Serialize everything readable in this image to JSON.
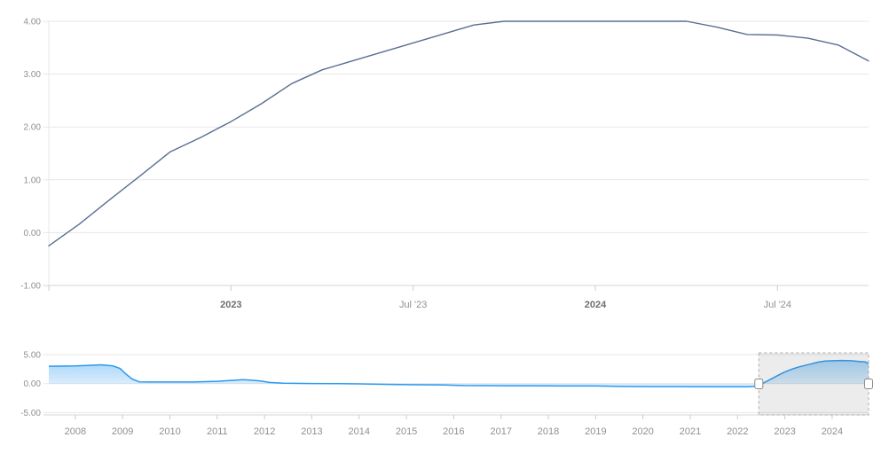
{
  "colors": {
    "background": "#ffffff",
    "grid": "#e7e7e7",
    "axis_line": "#d6d6d6",
    "tick": "#cccccc",
    "label": "#909090",
    "label_bold": "#6e6e6e",
    "main_line": "#5a6e93",
    "nav_line": "#2b99ef",
    "nav_fill_top": "rgba(43,153,239,0.50)",
    "nav_fill_bottom": "rgba(43,153,239,0.03)",
    "mask_fill": "rgba(110,110,110,0.13)",
    "mask_border": "#ababab",
    "handle_fill": "#ffffff",
    "handle_border": "#8c8c8c"
  },
  "chart_data": [
    {
      "id": "main",
      "type": "line",
      "title": "",
      "xlabel": "",
      "ylabel": "",
      "legend": false,
      "grid": true,
      "ylim": [
        -1,
        4
      ],
      "x": [
        "Jul '22",
        "Aug '22",
        "Sep '22",
        "Oct '22",
        "Nov '22",
        "Dec '22",
        "Jan '23",
        "Feb '23",
        "Mar '23",
        "Apr '23",
        "May '23",
        "Jun '23",
        "Jul '23",
        "Aug '23",
        "Sep '23",
        "Oct '23",
        "Nov '23",
        "Dec '23",
        "Jan '24",
        "Feb '24",
        "Mar '24",
        "Apr '24",
        "May '24",
        "Jun '24",
        "Jul '24",
        "Aug '24",
        "Sep '24",
        "Oct '24"
      ],
      "values": [
        -0.25,
        0.16,
        0.62,
        1.07,
        1.53,
        1.8,
        2.1,
        2.44,
        2.82,
        3.08,
        3.25,
        3.42,
        3.59,
        3.76,
        3.93,
        4.0,
        4.0,
        4.0,
        4.0,
        4.0,
        4.0,
        4.0,
        3.89,
        3.75,
        3.74,
        3.68,
        3.55,
        3.25
      ],
      "y_ticks": [
        {
          "v": 4,
          "label": "4.00"
        },
        {
          "v": 3,
          "label": "3.00"
        },
        {
          "v": 2,
          "label": "2.00"
        },
        {
          "v": 1,
          "label": "1.00"
        },
        {
          "v": 0,
          "label": "0.00"
        },
        {
          "v": -1,
          "label": "-1.00"
        }
      ],
      "x_ticks": [
        {
          "i": 0,
          "label": "",
          "bold": false
        },
        {
          "i": 6,
          "label": "2023",
          "bold": true
        },
        {
          "i": 12,
          "label": "Jul '23",
          "bold": false
        },
        {
          "i": 18,
          "label": "2024",
          "bold": true
        },
        {
          "i": 24,
          "label": "Jul '24",
          "bold": false
        }
      ]
    },
    {
      "id": "navigator",
      "type": "area",
      "title": "",
      "legend": false,
      "grid": true,
      "x_domain": [
        2007.44,
        2024.77
      ],
      "ylim": [
        -5,
        5
      ],
      "points": [
        [
          2007.44,
          3.0
        ],
        [
          2008.0,
          3.05
        ],
        [
          2008.3,
          3.15
        ],
        [
          2008.55,
          3.25
        ],
        [
          2008.8,
          3.05
        ],
        [
          2008.95,
          2.6
        ],
        [
          2009.05,
          1.8
        ],
        [
          2009.2,
          0.8
        ],
        [
          2009.35,
          0.3
        ],
        [
          2009.6,
          0.28
        ],
        [
          2010.0,
          0.27
        ],
        [
          2010.5,
          0.28
        ],
        [
          2011.0,
          0.4
        ],
        [
          2011.3,
          0.55
        ],
        [
          2011.55,
          0.68
        ],
        [
          2011.8,
          0.55
        ],
        [
          2011.95,
          0.42
        ],
        [
          2012.1,
          0.2
        ],
        [
          2012.4,
          0.07
        ],
        [
          2013.0,
          0.02
        ],
        [
          2013.5,
          0.0
        ],
        [
          2014.0,
          -0.05
        ],
        [
          2014.5,
          -0.12
        ],
        [
          2015.0,
          -0.18
        ],
        [
          2015.8,
          -0.25
        ],
        [
          2016.2,
          -0.33
        ],
        [
          2017.0,
          -0.37
        ],
        [
          2018.0,
          -0.4
        ],
        [
          2019.0,
          -0.42
        ],
        [
          2019.7,
          -0.5
        ],
        [
          2020.5,
          -0.52
        ],
        [
          2021.5,
          -0.53
        ],
        [
          2022.2,
          -0.53
        ],
        [
          2022.45,
          -0.45
        ],
        [
          2022.55,
          0.1
        ],
        [
          2022.7,
          0.75
        ],
        [
          2022.85,
          1.4
        ],
        [
          2023.0,
          2.0
        ],
        [
          2023.15,
          2.5
        ],
        [
          2023.3,
          2.9
        ],
        [
          2023.5,
          3.3
        ],
        [
          2023.7,
          3.7
        ],
        [
          2023.85,
          3.9
        ],
        [
          2024.0,
          3.95
        ],
        [
          2024.2,
          4.0
        ],
        [
          2024.4,
          3.95
        ],
        [
          2024.55,
          3.85
        ],
        [
          2024.7,
          3.75
        ],
        [
          2024.77,
          3.45
        ]
      ],
      "y_ticks": [
        {
          "v": 5,
          "label": "5.00"
        },
        {
          "v": 0,
          "label": "0.00"
        },
        {
          "v": -5,
          "label": "-5.00"
        }
      ],
      "x_ticks": [
        {
          "year": 2008,
          "label": "2008"
        },
        {
          "year": 2009,
          "label": "2009"
        },
        {
          "year": 2010,
          "label": "2010"
        },
        {
          "year": 2011,
          "label": "2011"
        },
        {
          "year": 2012,
          "label": "2012"
        },
        {
          "year": 2013,
          "label": "2013"
        },
        {
          "year": 2014,
          "label": "2014"
        },
        {
          "year": 2015,
          "label": "2015"
        },
        {
          "year": 2016,
          "label": "2016"
        },
        {
          "year": 2017,
          "label": "2017"
        },
        {
          "year": 2018,
          "label": "2018"
        },
        {
          "year": 2019,
          "label": "2019"
        },
        {
          "year": 2020,
          "label": "2020"
        },
        {
          "year": 2021,
          "label": "2021"
        },
        {
          "year": 2022,
          "label": "2022"
        },
        {
          "year": 2023,
          "label": "2023"
        },
        {
          "year": 2024,
          "label": "2024"
        }
      ],
      "selection": {
        "start": 2022.45,
        "end": 2024.77
      }
    }
  ]
}
